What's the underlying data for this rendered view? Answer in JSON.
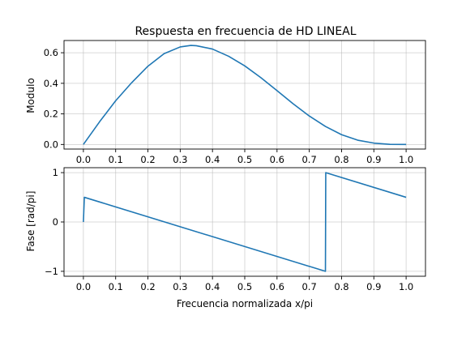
{
  "chart_data": [
    {
      "type": "line",
      "title": "Respuesta en frecuencia de HD LINEAL",
      "xlabel": "",
      "ylabel": "Modulo",
      "xlim": [
        -0.06,
        1.06
      ],
      "ylim": [
        -0.03,
        0.68
      ],
      "xticks": [
        0.0,
        0.1,
        0.2,
        0.3,
        0.4,
        0.5,
        0.6,
        0.7,
        0.8,
        0.9,
        1.0
      ],
      "xtick_labels": [
        "0.0",
        "0.1",
        "0.2",
        "0.3",
        "0.4",
        "0.5",
        "0.6",
        "0.7",
        "0.8",
        "0.9",
        "1.0"
      ],
      "yticks": [
        0.0,
        0.2,
        0.4,
        0.6
      ],
      "ytick_labels": [
        "0.0",
        "0.2",
        "0.4",
        "0.6"
      ],
      "grid": true,
      "series": [
        {
          "color": "#1f77b4",
          "x": [
            0.0,
            0.05,
            0.1,
            0.15,
            0.2,
            0.25,
            0.3,
            0.333,
            0.35,
            0.4,
            0.45,
            0.5,
            0.55,
            0.6,
            0.65,
            0.7,
            0.75,
            0.8,
            0.85,
            0.9,
            0.95,
            1.0
          ],
          "y": [
            0.0,
            0.148,
            0.286,
            0.405,
            0.512,
            0.594,
            0.638,
            0.648,
            0.646,
            0.624,
            0.577,
            0.514,
            0.437,
            0.352,
            0.266,
            0.186,
            0.118,
            0.064,
            0.028,
            0.009,
            0.001,
            0.0
          ]
        }
      ]
    },
    {
      "type": "line",
      "title": "",
      "xlabel": "Frecuencia normalizada x/pi",
      "ylabel": "Fase [rad/pi]",
      "xlim": [
        -0.06,
        1.06
      ],
      "ylim": [
        -1.1,
        1.1
      ],
      "xticks": [
        0.0,
        0.1,
        0.2,
        0.3,
        0.4,
        0.5,
        0.6,
        0.7,
        0.8,
        0.9,
        1.0
      ],
      "xtick_labels": [
        "0.0",
        "0.1",
        "0.2",
        "0.3",
        "0.4",
        "0.5",
        "0.6",
        "0.7",
        "0.8",
        "0.9",
        "1.0"
      ],
      "yticks": [
        -1,
        0,
        1
      ],
      "ytick_labels": [
        "−1",
        "0",
        "1"
      ],
      "grid": true,
      "series": [
        {
          "color": "#1f77b4",
          "x": [
            0.0,
            0.003,
            0.75,
            0.751,
            1.0
          ],
          "y": [
            0.0,
            0.5,
            -1.0,
            1.0,
            0.5
          ]
        }
      ]
    }
  ]
}
